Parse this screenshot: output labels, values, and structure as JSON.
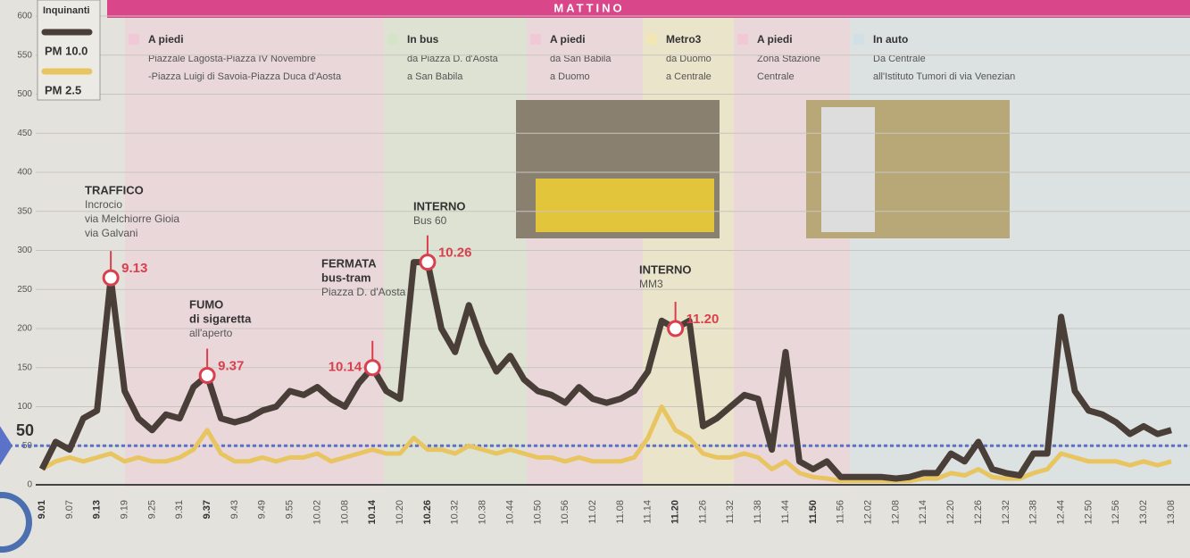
{
  "chart_data": {
    "type": "line",
    "title": "MATTINO",
    "legend_title": "Inquinanti",
    "segments": [
      {
        "mode": "A piedi",
        "route": [
          "Piazzale Lagosta-Piazza IV Novembre",
          "-Piazza Luigi di Savoia-Piazza Duca d'Aosta"
        ],
        "color": "#f1c9d6"
      },
      {
        "mode": "In bus",
        "route": [
          "da Piazza D. d'Aosta",
          "a San Babila"
        ],
        "color": "#d5e3c8"
      },
      {
        "mode": "A piedi",
        "route": [
          "da San Babila",
          "a Duomo"
        ],
        "color": "#f1c9d6"
      },
      {
        "mode": "Metro3",
        "route": [
          "da Duomo",
          "a Centrale"
        ],
        "color": "#f2e6b4"
      },
      {
        "mode": "A piedi",
        "route": [
          "Zona Stazione",
          "Centrale"
        ],
        "color": "#f1c9d6"
      },
      {
        "mode": "In auto",
        "route": [
          "Da Centrale",
          "all'Istituto Tumori  di via Venezian"
        ],
        "color": "#d3dfe6"
      }
    ],
    "categories": [
      "9.01",
      null,
      "9.07",
      null,
      "9.13",
      null,
      "9.19",
      null,
      "9.25",
      null,
      "9.31",
      null,
      "9.37",
      null,
      "9.43",
      null,
      "9.49",
      null,
      "9.55",
      null,
      "10.02",
      null,
      "10.08",
      null,
      "10.14",
      null,
      "10.20",
      null,
      "10.26",
      null,
      "10.32",
      null,
      "10.38",
      null,
      "10.44",
      null,
      "10.50",
      null,
      "10.56",
      null,
      "11.02",
      null,
      "11.08",
      null,
      "11.14",
      null,
      "11.20",
      null,
      "11.26",
      null,
      "11.32",
      null,
      "11.38",
      null,
      "11.44",
      null,
      "11.50",
      null,
      "11.56",
      null,
      "12.02",
      null,
      "12.08",
      null,
      "12.14",
      null,
      "12.20",
      null,
      "12.26",
      null,
      "12.32",
      null,
      "12.38",
      null,
      "12.44",
      null,
      "12.50",
      null,
      "12.56",
      null,
      "13.02",
      null,
      "13.08"
    ],
    "series": [
      {
        "name": "PM 10.0",
        "color": "#4a3f38",
        "values": [
          20,
          55,
          45,
          85,
          95,
          265,
          120,
          85,
          70,
          90,
          85,
          125,
          140,
          85,
          80,
          85,
          95,
          100,
          120,
          115,
          125,
          110,
          100,
          130,
          150,
          120,
          110,
          285,
          285,
          200,
          170,
          230,
          180,
          145,
          165,
          135,
          120,
          115,
          105,
          125,
          110,
          105,
          110,
          120,
          145,
          210,
          200,
          210,
          75,
          85,
          100,
          115,
          110,
          45,
          170,
          30,
          20,
          30,
          10,
          10,
          10,
          10,
          8,
          10,
          15,
          15,
          40,
          30,
          55,
          20,
          15,
          12,
          40,
          40,
          215,
          120,
          95,
          90,
          80,
          65,
          75,
          65,
          70
        ]
      },
      {
        "name": "PM 2.5",
        "color": "#e8c560",
        "values": [
          20,
          30,
          35,
          30,
          35,
          40,
          30,
          35,
          30,
          30,
          35,
          45,
          70,
          40,
          30,
          30,
          35,
          30,
          35,
          35,
          40,
          30,
          35,
          40,
          45,
          40,
          40,
          60,
          45,
          45,
          40,
          50,
          45,
          40,
          45,
          40,
          35,
          35,
          30,
          35,
          30,
          30,
          30,
          35,
          60,
          100,
          70,
          60,
          40,
          35,
          35,
          40,
          35,
          20,
          30,
          15,
          10,
          8,
          5,
          5,
          5,
          5,
          5,
          5,
          8,
          8,
          15,
          12,
          20,
          10,
          8,
          8,
          15,
          20,
          40,
          35,
          30,
          30,
          30,
          25,
          30,
          25,
          30
        ]
      }
    ],
    "ylim": [
      0,
      600
    ],
    "yticks": [
      0,
      50,
      100,
      150,
      200,
      250,
      300,
      350,
      400,
      450,
      500,
      550,
      600
    ],
    "threshold": 50,
    "grid": true,
    "annotations": [
      {
        "time": "9.13",
        "title": [
          "TRAFFICO"
        ],
        "text": [
          "Incrocio",
          "via Melchiorre Gioia",
          "via Galvani"
        ]
      },
      {
        "time": "9.37",
        "title": [
          "FUMO",
          "di sigaretta"
        ],
        "text": [
          "all'aperto"
        ]
      },
      {
        "time": "10.14",
        "title": [
          "FERMATA",
          "bus-tram"
        ],
        "text": [
          "Piazza D. d'Aosta"
        ]
      },
      {
        "time": "10.26",
        "title": [
          "INTERNO"
        ],
        "text": [
          "Bus 60"
        ]
      },
      {
        "time": "11.20",
        "title": [
          "INTERNO"
        ],
        "text": [
          "MM3"
        ]
      }
    ]
  }
}
